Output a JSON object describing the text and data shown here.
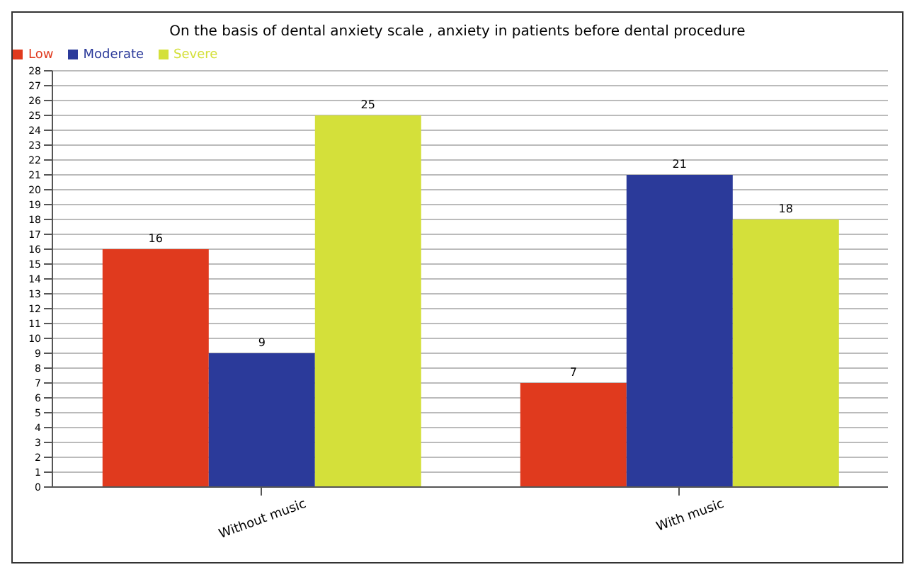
{
  "chart_data": {
    "type": "bar",
    "title": "On the basis of dental anxiety scale , anxiety in patients before dental procedure",
    "categories": [
      "Without music",
      "With music"
    ],
    "series": [
      {
        "name": "Low",
        "color": "#e03a1e",
        "values": [
          16,
          7
        ]
      },
      {
        "name": "Moderate",
        "color": "#2b3a9a",
        "values": [
          9,
          21
        ]
      },
      {
        "name": "Severe",
        "color": "#d4e03a",
        "values": [
          25,
          18
        ]
      }
    ],
    "ylim": [
      0,
      28
    ],
    "yticks": [
      0,
      1,
      2,
      3,
      4,
      5,
      6,
      7,
      8,
      9,
      10,
      11,
      12,
      13,
      14,
      15,
      16,
      17,
      18,
      19,
      20,
      21,
      22,
      23,
      24,
      25,
      26,
      27,
      28
    ],
    "grid": "y",
    "legend": "top left",
    "data_labels": true
  }
}
